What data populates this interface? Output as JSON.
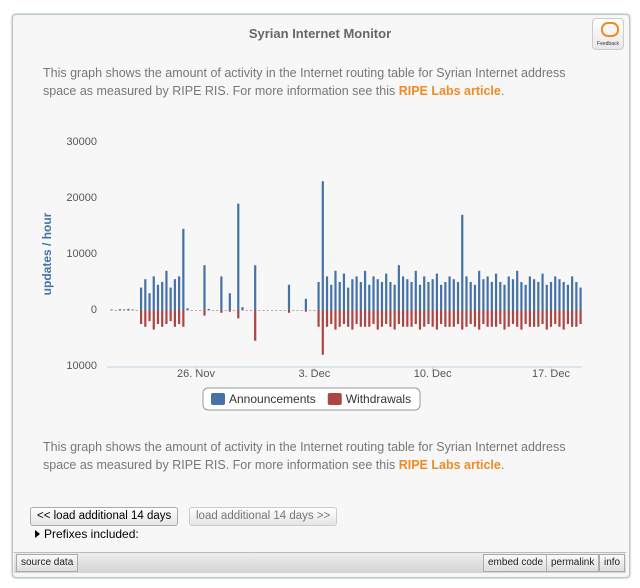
{
  "header": {
    "title": "Syrian Internet Monitor",
    "feedback_label": "Feedback"
  },
  "description_top": {
    "before": "This graph shows the amount of activity in the Internet routing table for Syrian Internet address space as measured by RIPE RIS. For more information see this ",
    "link": "RIPE Labs article",
    "after": "."
  },
  "chart_data": {
    "type": "bar",
    "y_label": "updates / hour",
    "categories": [
      null,
      null,
      null,
      null,
      null,
      null,
      null,
      null,
      null,
      null,
      null,
      null,
      null,
      null,
      null,
      null,
      null,
      null,
      null,
      null,
      "26. Nov",
      null,
      null,
      null,
      null,
      null,
      null,
      null,
      null,
      null,
      null,
      null,
      null,
      null,
      null,
      null,
      null,
      null,
      null,
      null,
      null,
      null,
      null,
      null,
      null,
      null,
      null,
      null,
      "3. Dec",
      null,
      null,
      null,
      null,
      null,
      null,
      null,
      null,
      null,
      null,
      null,
      null,
      null,
      null,
      null,
      null,
      null,
      null,
      null,
      null,
      null,
      null,
      null,
      null,
      null,
      null,
      null,
      "10. Dec",
      null,
      null,
      null,
      null,
      null,
      null,
      null,
      null,
      null,
      null,
      null,
      null,
      null,
      null,
      null,
      null,
      null,
      null,
      null,
      null,
      null,
      null,
      null,
      null,
      null,
      null,
      null,
      "17. Dec",
      null,
      null,
      null,
      null,
      null,
      null,
      null
    ],
    "series": [
      {
        "name": "Announcements",
        "color": "#4572a7",
        "values": [
          100,
          0,
          150,
          100,
          200,
          100,
          0,
          4000,
          5500,
          3000,
          6000,
          4500,
          5000,
          7000,
          4000,
          5500,
          6000,
          14500,
          300,
          0,
          0,
          0,
          8000,
          200,
          0,
          0,
          6000,
          0,
          3000,
          0,
          19000,
          500,
          0,
          0,
          8000,
          0,
          0,
          0,
          0,
          0,
          0,
          0,
          4500,
          0,
          0,
          0,
          2000,
          0,
          0,
          5000,
          23000,
          6000,
          4500,
          7000,
          5000,
          6500,
          4000,
          5500,
          6000,
          5000,
          7000,
          4500,
          6000,
          5500,
          5000,
          6500,
          5000,
          4500,
          8000,
          6000,
          5500,
          5000,
          7000,
          4500,
          6000,
          5000,
          5500,
          6500,
          4500,
          5000,
          6000,
          5500,
          5000,
          17000,
          6000,
          5000,
          4500,
          7000,
          5500,
          6000,
          5000,
          6500,
          5000,
          4500,
          6000,
          5500,
          7000,
          5000,
          4500,
          6000,
          5500,
          5000,
          6500,
          4500,
          5000,
          6000,
          5500,
          5000,
          4500,
          6000,
          5000,
          4000
        ]
      },
      {
        "name": "Withdrawals",
        "color": "#aa4643",
        "values": [
          0,
          0,
          -100,
          0,
          -100,
          0,
          0,
          -2500,
          -3000,
          -2000,
          -3500,
          -2500,
          -3000,
          -2500,
          -2000,
          -3000,
          -2500,
          -3000,
          0,
          0,
          0,
          0,
          -1000,
          0,
          0,
          0,
          -500,
          0,
          -300,
          0,
          -1500,
          0,
          0,
          0,
          -5500,
          0,
          0,
          0,
          0,
          0,
          0,
          0,
          -500,
          0,
          0,
          0,
          -300,
          0,
          0,
          -3000,
          -8000,
          -3000,
          -2500,
          -3500,
          -3000,
          -2500,
          -3000,
          -3500,
          -2500,
          -3000,
          -3000,
          -3000,
          -2500,
          -3500,
          -3000,
          -2500,
          -3000,
          -3500,
          -2500,
          -3000,
          -3000,
          -3000,
          -2500,
          -3500,
          -3000,
          -2500,
          -3000,
          -3500,
          -2500,
          -3000,
          -3000,
          -3000,
          -2500,
          -3500,
          -3000,
          -2500,
          -3000,
          -3500,
          -2500,
          -3000,
          -3000,
          -3000,
          -2500,
          -3500,
          -3000,
          -2500,
          -3000,
          -3500,
          -2500,
          -3000,
          -3000,
          -3000,
          -2500,
          -3500,
          -3000,
          -2500,
          -3000,
          -3500,
          -2500,
          -3000,
          -3000,
          -2500
        ]
      }
    ],
    "ylim": [
      -10000,
      30000
    ],
    "yticks": [
      30000,
      20000,
      10000,
      0,
      {
        "value": -10000,
        "label": "10000"
      }
    ],
    "grid": false
  },
  "description_bottom": {
    "before": "This graph shows the amount of activity in the Internet routing table for Syrian Internet address space as measured by RIPE RIS. For more information see this ",
    "link": "RIPE Labs article",
    "after": "."
  },
  "controls": {
    "prev_button": "<< load additional 14 days",
    "next_button": "load additional 14 days >>",
    "prefixes": "Prefixes included:"
  },
  "footer": {
    "source": "source data",
    "embed": "embed code",
    "permalink": "permalink",
    "info": "info"
  }
}
